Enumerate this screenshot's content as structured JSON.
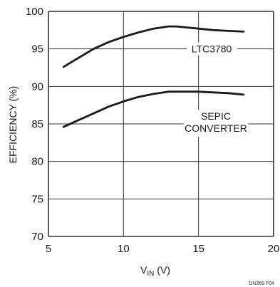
{
  "chart_data": {
    "type": "line",
    "xlabel_main": "V",
    "xlabel_sub": "IN",
    "xlabel_unit": " (V)",
    "ylabel": "EFFICIENCY (%)",
    "xlim": [
      5,
      20
    ],
    "ylim": [
      70,
      100
    ],
    "x_ticks": [
      5,
      10,
      15,
      20
    ],
    "y_ticks": [
      70,
      75,
      80,
      85,
      90,
      95,
      100
    ],
    "grid": true,
    "series": [
      {
        "name": "LTC3780",
        "x": [
          6,
          7,
          8,
          9,
          10,
          11,
          12,
          13,
          13.5,
          14,
          15,
          16,
          17,
          18
        ],
        "y": [
          92.6,
          93.8,
          95.0,
          95.9,
          96.6,
          97.2,
          97.7,
          98.0,
          98.0,
          97.9,
          97.7,
          97.5,
          97.4,
          97.3
        ]
      },
      {
        "name_lines": [
          "SEPIC",
          "CONVERTER"
        ],
        "x": [
          6,
          7,
          8,
          9,
          10,
          11,
          12,
          13,
          14,
          15,
          16,
          17,
          18
        ],
        "y": [
          84.6,
          85.5,
          86.4,
          87.3,
          88.0,
          88.6,
          89.0,
          89.3,
          89.3,
          89.3,
          89.2,
          89.1,
          88.9
        ]
      }
    ],
    "colors": {
      "line": "#1a1a1a",
      "grid": "#333333",
      "background": "#ffffff"
    },
    "figure_id": "DN369 F04"
  }
}
